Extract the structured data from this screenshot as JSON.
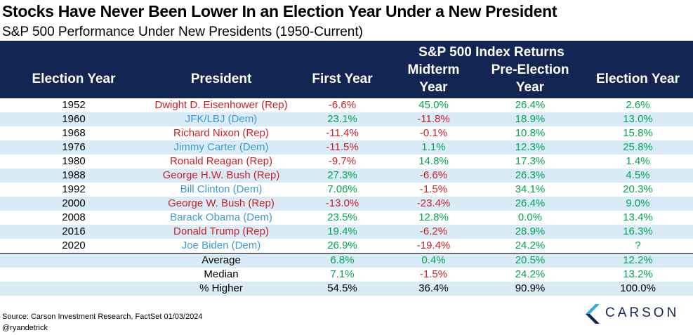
{
  "title": "Stocks Have Never Been Lower In an Election Year Under a New President",
  "subtitle": "S&P 500 Performance Under New Presidents (1950-Current)",
  "header": {
    "group": "S&P 500 Index Returns",
    "col_election_year": "Election Year",
    "col_president": "President",
    "col_first_year": "First Year",
    "col_midterm_1": "Midterm",
    "col_midterm_2": "Year",
    "col_preelection_1": "Pre-Election",
    "col_preelection_2": "Year",
    "col_election_year_ret": "Election Year"
  },
  "rows": [
    {
      "year": "1952",
      "president": "Dwight D. Eisenhower (Rep)",
      "party": "rep",
      "first": "-6.6%",
      "midterm": "45.0%",
      "pre": "26.4%",
      "election": "2.6%"
    },
    {
      "year": "1960",
      "president": "JFK/LBJ (Dem)",
      "party": "dem",
      "first": "23.1%",
      "midterm": "-11.8%",
      "pre": "18.9%",
      "election": "13.0%"
    },
    {
      "year": "1968",
      "president": "Richard Nixon (Rep)",
      "party": "rep",
      "first": "-11.4%",
      "midterm": "-0.1%",
      "pre": "10.8%",
      "election": "15.8%"
    },
    {
      "year": "1976",
      "president": "Jimmy Carter (Dem)",
      "party": "dem",
      "first": "-11.5%",
      "midterm": "1.1%",
      "pre": "12.3%",
      "election": "25.8%"
    },
    {
      "year": "1980",
      "president": "Ronald Reagan (Rep)",
      "party": "rep",
      "first": "-9.7%",
      "midterm": "14.8%",
      "pre": "17.3%",
      "election": "1.4%"
    },
    {
      "year": "1988",
      "president": "George H.W. Bush (Rep)",
      "party": "rep",
      "first": "27.3%",
      "midterm": "-6.6%",
      "pre": "26.3%",
      "election": "4.5%"
    },
    {
      "year": "1992",
      "president": "Bill Clinton (Dem)",
      "party": "dem",
      "first": "7.06%",
      "midterm": "-1.5%",
      "pre": "34.1%",
      "election": "20.3%"
    },
    {
      "year": "2000",
      "president": "George W. Bush (Rep)",
      "party": "rep",
      "first": "-13.0%",
      "midterm": "-23.4%",
      "pre": "26.4%",
      "election": "9.0%"
    },
    {
      "year": "2008",
      "president": "Barack Obama (Dem)",
      "party": "dem",
      "first": "23.5%",
      "midterm": "12.8%",
      "pre": "0.0%",
      "election": "13.4%"
    },
    {
      "year": "2016",
      "president": "Donald Trump (Rep)",
      "party": "rep",
      "first": "19.4%",
      "midterm": "-6.2%",
      "pre": "28.9%",
      "election": "16.3%"
    },
    {
      "year": "2020",
      "president": "Joe Biden (Dem)",
      "party": "dem",
      "first": "26.9%",
      "midterm": "-19.4%",
      "pre": "24.2%",
      "election": "?"
    }
  ],
  "summary": [
    {
      "label": "Average",
      "first": "6.8%",
      "midterm": "0.4%",
      "pre": "20.5%",
      "election": "12.2%"
    },
    {
      "label": "Median",
      "first": "7.1%",
      "midterm": "-1.5%",
      "pre": "24.2%",
      "election": "13.2%"
    },
    {
      "label": "% Higher",
      "first": "54.5%",
      "midterm": "36.4%",
      "pre": "90.9%",
      "election": "100.0%"
    }
  ],
  "footer": {
    "source": "Source: Carson Investment Research, FactSet 01/03/2024",
    "handle": "@ryandetrick"
  },
  "logo_text": "CARSON",
  "colors": {
    "header_bg": "#122553",
    "alt_row": "#d8ebf7",
    "positive": "#00a650",
    "negative": "#cc2026",
    "republican": "#cc2026",
    "democrat": "#3d9ad1",
    "logo_light": "#36a9e1",
    "logo_dark": "#122553"
  }
}
